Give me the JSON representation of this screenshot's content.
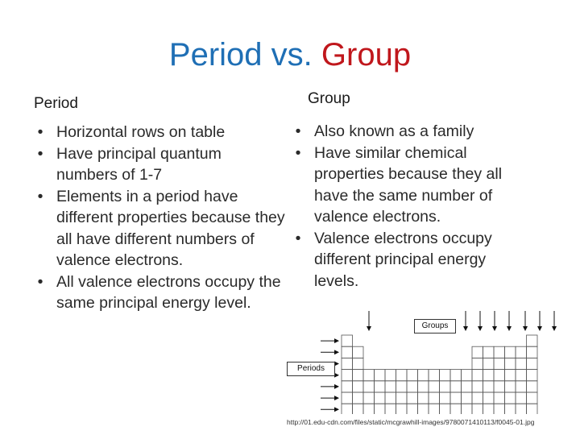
{
  "title": {
    "part1": "Period",
    "vs": " vs. ",
    "part2": "Group"
  },
  "left": {
    "heading": "Period",
    "bullets": [
      "Horizontal rows on table",
      "Have principal quantum numbers of 1-7",
      "Elements in a period have different properties because they all have different numbers of valence electrons.",
      "All valence electrons occupy the same principal energy level."
    ]
  },
  "right": {
    "heading": "Group",
    "bullets": [
      "Also known as a family",
      "Have similar chemical properties because they all have the same number of valence electrons.",
      "Valence electrons occupy different principal energy levels."
    ]
  },
  "figure": {
    "groups_label": "Groups",
    "periods_label": "Periods"
  },
  "credit": "http://01.edu-cdn.com/files/static/mcgrawhill-images/9780071410113/f0045-01.jpg",
  "colors": {
    "title_blue": "#1f6fb5",
    "title_red": "#c0171c"
  },
  "bullet_glyph": "•"
}
